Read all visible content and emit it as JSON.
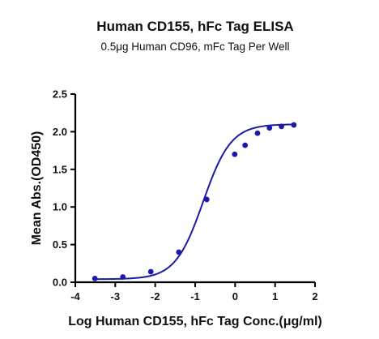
{
  "chart_data": {
    "type": "scatter",
    "title": "Human CD155, hFc Tag ELISA",
    "subtitle": "0.5μg Human CD96, mFc Tag Per Well",
    "xlabel": "Log Human CD155, hFc Tag Conc.(μg/ml)",
    "ylabel": "Mean Abs.(OD450)",
    "xlim": [
      -4,
      2
    ],
    "ylim": [
      0,
      2.5
    ],
    "x_ticks": [
      -4,
      -3,
      -2,
      -1,
      0,
      1,
      2
    ],
    "x_tick_labels": [
      "-4",
      "-3",
      "-2",
      "-1",
      "0",
      "1",
      "2"
    ],
    "y_ticks": [
      0,
      0.5,
      1.0,
      1.5,
      2.0,
      2.5
    ],
    "y_tick_labels": [
      "0.0",
      "0.5",
      "1.0",
      "1.5",
      "2.0",
      "2.5"
    ],
    "grid": false,
    "legend": "none",
    "color": "#1a1aa6",
    "series": [
      {
        "points": [
          {
            "x": -3.51,
            "y": 0.05
          },
          {
            "x": -2.81,
            "y": 0.07
          },
          {
            "x": -2.11,
            "y": 0.14
          },
          {
            "x": -1.41,
            "y": 0.4
          },
          {
            "x": -0.71,
            "y": 1.1
          },
          {
            "x": -0.01,
            "y": 1.7
          },
          {
            "x": 0.25,
            "y": 1.82
          },
          {
            "x": 0.56,
            "y": 1.98
          },
          {
            "x": 0.86,
            "y": 2.05
          },
          {
            "x": 1.16,
            "y": 2.07
          },
          {
            "x": 1.47,
            "y": 2.09
          }
        ],
        "fit": {
          "model": "4PL",
          "bottom": 0.04,
          "top": 2.1,
          "logEC50": -0.8,
          "hill": 1.25
        }
      }
    ]
  }
}
